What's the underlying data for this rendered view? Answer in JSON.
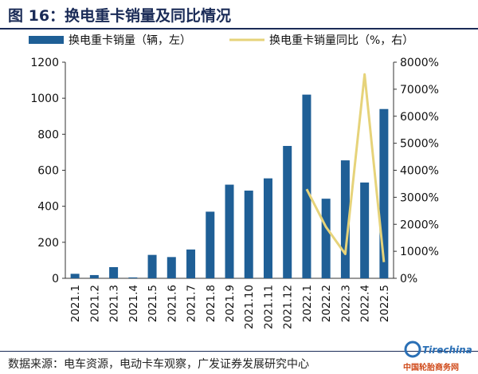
{
  "header": {
    "figure_title": "图 16：换电重卡销量及同比情况"
  },
  "footer": {
    "source": "数据来源：电车资源，电动卡车观察，广发证券发展研究中心"
  },
  "watermark": {
    "brand": "Tirechina",
    "text": "中国轮胎商务网"
  },
  "colors": {
    "bar": "#1f5f96",
    "line": "#e6d37a",
    "title": "#1a2b57"
  },
  "chart_data": {
    "type": "bar",
    "title": "",
    "xlabel": "",
    "ylabel": "",
    "categories": [
      "2021.1",
      "2021.2",
      "2021.3",
      "2021.4",
      "2021.5",
      "2021.6",
      "2021.7",
      "2021.8",
      "2021.9",
      "2021.10",
      "2021.11",
      "2021.12",
      "2022.1",
      "2022.2",
      "2022.3",
      "2022.4",
      "2022.5"
    ],
    "series": [
      {
        "name": "换电重卡销量（辆，左）",
        "type": "bar",
        "axis": "left",
        "values": [
          25,
          18,
          62,
          5,
          130,
          118,
          160,
          370,
          520,
          487,
          555,
          735,
          1020,
          442,
          655,
          532,
          940
        ]
      },
      {
        "name": "换电重卡销量同比（%，右）",
        "type": "line",
        "axis": "right",
        "values": [
          null,
          null,
          null,
          null,
          null,
          null,
          null,
          null,
          null,
          null,
          null,
          null,
          3300,
          1900,
          900,
          7550,
          600
        ]
      }
    ],
    "ylim_left": [
      0,
      1200
    ],
    "yticks_left": [
      "0",
      "200",
      "400",
      "600",
      "800",
      "1000",
      "1200"
    ],
    "ylim_right": [
      0,
      8000
    ],
    "yticks_right": [
      "0%",
      "1000%",
      "2000%",
      "3000%",
      "4000%",
      "5000%",
      "6000%",
      "7000%",
      "8000%"
    ],
    "legend_position": "top",
    "grid": false
  }
}
